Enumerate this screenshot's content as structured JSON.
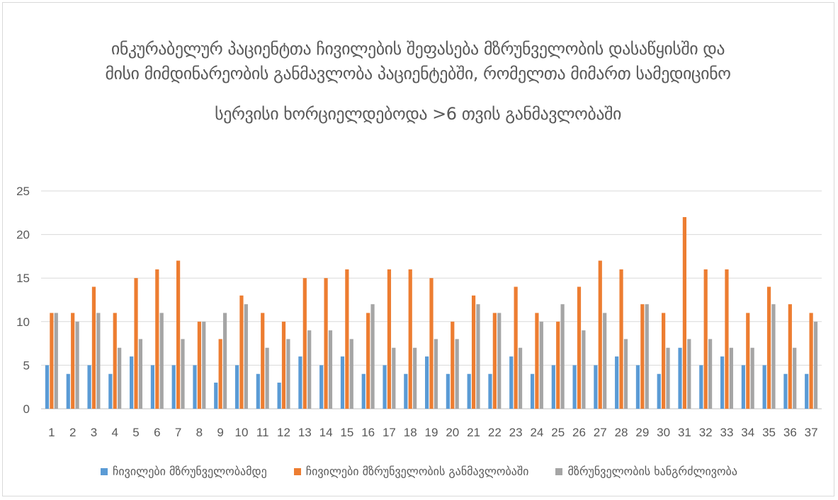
{
  "title": [
    "ინკურაბელურ პაციენტთა ჩივილების შეფასება მზრუნველობის დასაწყისში და",
    "მისი მიმდინარეობის განმავლობა პაციენტებში, რომელთა მიმართ სამედიცინო",
    "სერვისი ხორციელდებოდა  >6 თვის განმავლობაში"
  ],
  "chart_data": {
    "type": "bar",
    "categories": [
      "1",
      "2",
      "3",
      "4",
      "5",
      "6",
      "7",
      "8",
      "9",
      "10",
      "11",
      "12",
      "13",
      "14",
      "15",
      "16",
      "17",
      "18",
      "19",
      "20",
      "21",
      "22",
      "23",
      "24",
      "25",
      "26",
      "27",
      "28",
      "29",
      "30",
      "31",
      "32",
      "33",
      "34",
      "35",
      "36",
      "37"
    ],
    "series": [
      {
        "name": "ჩივილები მზრუნველობამდე",
        "color": "#5b9bd5",
        "values": [
          5,
          4,
          5,
          4,
          6,
          5,
          5,
          5,
          3,
          5,
          4,
          3,
          6,
          5,
          6,
          4,
          5,
          4,
          6,
          4,
          4,
          4,
          6,
          4,
          5,
          5,
          5,
          6,
          5,
          4,
          7,
          5,
          6,
          5,
          5,
          4,
          4
        ]
      },
      {
        "name": "ჩივილები მზრუნველობის განმავლობაში",
        "color": "#ed7d31",
        "values": [
          11,
          11,
          14,
          11,
          15,
          16,
          17,
          10,
          8,
          13,
          11,
          10,
          15,
          15,
          16,
          11,
          16,
          16,
          15,
          10,
          13,
          11,
          14,
          11,
          10,
          14,
          17,
          16,
          12,
          11,
          22,
          16,
          16,
          11,
          14,
          12,
          11
        ]
      },
      {
        "name": "მზრუნველობის ხანგრძლივობა",
        "color": "#a5a5a5",
        "values": [
          11,
          10,
          11,
          7,
          8,
          11,
          8,
          10,
          11,
          12,
          7,
          8,
          9,
          9,
          8,
          12,
          7,
          7,
          8,
          8,
          12,
          11,
          7,
          10,
          12,
          9,
          11,
          8,
          12,
          7,
          8,
          8,
          7,
          7,
          12,
          7,
          10
        ]
      }
    ],
    "ylim": [
      0,
      25
    ],
    "yticks": [
      0,
      5,
      10,
      15,
      20,
      25
    ],
    "grid": true,
    "legend": "bottom"
  }
}
